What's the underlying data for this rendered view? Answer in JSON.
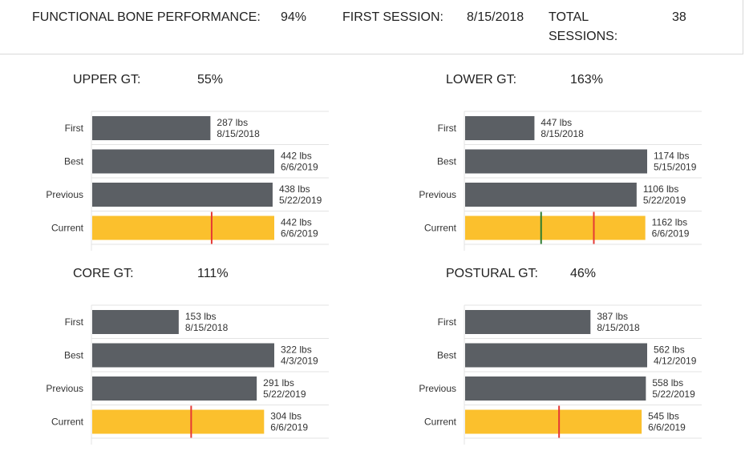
{
  "summary": {
    "fbp_label": "FUNCTIONAL BONE PERFORMANCE:",
    "fbp_value": "94%",
    "first_session_label": "FIRST SESSION:",
    "first_session_value": "8/15/2018",
    "total_sessions_label_1": "TOTAL",
    "total_sessions_label_2": "SESSIONS:",
    "total_sessions_value": "38"
  },
  "colors": {
    "bar": "#5b5f64",
    "current_bar": "#fbc02d",
    "red_marker": "#e53935",
    "green_marker": "#2e7d32",
    "grid": "#e3e3e3"
  },
  "chart_data": [
    {
      "type": "bar",
      "orientation": "horizontal",
      "title": "UPPER GT:",
      "percent": "55%",
      "categories": [
        "First",
        "Best",
        "Previous",
        "Current"
      ],
      "values": [
        287,
        442,
        438,
        442
      ],
      "units": "lbs",
      "value_labels": [
        "287 lbs",
        "442 lbs",
        "438 lbs",
        "442 lbs"
      ],
      "dates": [
        "8/15/2018",
        "6/6/2019",
        "5/22/2019",
        "6/6/2019"
      ],
      "markers": [
        {
          "value": 290,
          "color": "red"
        }
      ]
    },
    {
      "type": "bar",
      "orientation": "horizontal",
      "title": "LOWER GT:",
      "percent": "163%",
      "categories": [
        "First",
        "Best",
        "Previous",
        "Current"
      ],
      "values": [
        447,
        1174,
        1106,
        1162
      ],
      "units": "lbs",
      "value_labels": [
        "447 lbs",
        "1174 lbs",
        "1106 lbs",
        "1162 lbs"
      ],
      "dates": [
        "8/15/2018",
        "5/15/2019",
        "5/22/2019",
        "6/6/2019"
      ],
      "markers": [
        {
          "value": 490,
          "color": "green"
        },
        {
          "value": 830,
          "color": "red"
        }
      ]
    },
    {
      "type": "bar",
      "orientation": "horizontal",
      "title": "CORE GT:",
      "percent": "111%",
      "categories": [
        "First",
        "Best",
        "Previous",
        "Current"
      ],
      "values": [
        153,
        322,
        291,
        304
      ],
      "units": "lbs",
      "value_labels": [
        "153 lbs",
        "322 lbs",
        "291 lbs",
        "304 lbs"
      ],
      "dates": [
        "8/15/2018",
        "4/3/2019",
        "5/22/2019",
        "6/6/2019"
      ],
      "markers": [
        {
          "value": 175,
          "color": "red"
        }
      ]
    },
    {
      "type": "bar",
      "orientation": "horizontal",
      "title": "POSTURAL GT:",
      "percent": "46%",
      "categories": [
        "First",
        "Best",
        "Previous",
        "Current"
      ],
      "values": [
        387,
        562,
        558,
        545
      ],
      "units": "lbs",
      "value_labels": [
        "387 lbs",
        "562 lbs",
        "558 lbs",
        "545 lbs"
      ],
      "dates": [
        "8/15/2018",
        "4/12/2019",
        "5/22/2019",
        "6/6/2019"
      ],
      "markers": [
        {
          "value": 290,
          "color": "red"
        }
      ]
    }
  ]
}
